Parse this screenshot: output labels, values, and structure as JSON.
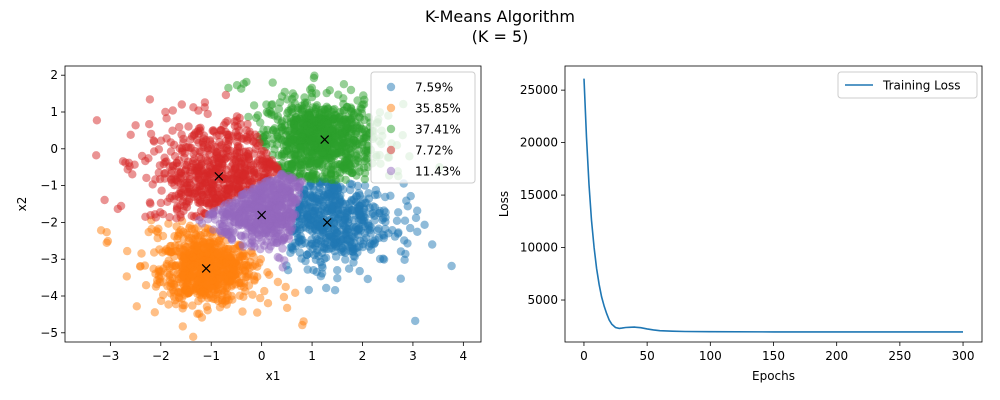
{
  "figure": {
    "title_line1": "K-Means Algorithm",
    "title_line2": "(K = 5)"
  },
  "chart_data": [
    {
      "type": "scatter",
      "xlabel": "x1",
      "ylabel": "x2",
      "xlim": [
        -3.9,
        4.35
      ],
      "ylim": [
        -5.25,
        2.25
      ],
      "xticks": [
        -3,
        -2,
        -1,
        0,
        1,
        2,
        3,
        4
      ],
      "yticks": [
        -5,
        -4,
        -3,
        -2,
        -1,
        0,
        1,
        2
      ],
      "grid": false,
      "legend_position": "top-right",
      "series": [
        {
          "name": "7.59%",
          "color": "#1f77b4",
          "centroid": [
            1.3,
            -2.0
          ]
        },
        {
          "name": "35.85%",
          "color": "#ff7f0e",
          "centroid": [
            -1.1,
            -3.25
          ]
        },
        {
          "name": "37.41%",
          "color": "#2ca02c",
          "centroid": [
            1.25,
            0.25
          ]
        },
        {
          "name": "7.72%",
          "color": "#d62728",
          "centroid": [
            -0.85,
            -0.75
          ]
        },
        {
          "name": "11.43%",
          "color": "#9467bd",
          "centroid": [
            0.0,
            -1.8
          ]
        }
      ],
      "centroid_marker": "x"
    },
    {
      "type": "line",
      "xlabel": "Epochs",
      "ylabel": "Loss",
      "xlim": [
        -15,
        315
      ],
      "ylim": [
        1000,
        27300
      ],
      "xticks": [
        0,
        50,
        100,
        150,
        200,
        250,
        300
      ],
      "yticks": [
        5000,
        10000,
        15000,
        20000,
        25000
      ],
      "grid": false,
      "legend_position": "top-right",
      "series": [
        {
          "name": "Training Loss",
          "color": "#1f77b4",
          "x": [
            0,
            2,
            4,
            6,
            8,
            10,
            12,
            14,
            16,
            18,
            20,
            22,
            25,
            28,
            30,
            33,
            36,
            40,
            45,
            50,
            55,
            60,
            70,
            80,
            100,
            150,
            200,
            250,
            300
          ],
          "y": [
            26100,
            20500,
            16000,
            12600,
            10000,
            8000,
            6500,
            5300,
            4400,
            3700,
            3100,
            2700,
            2380,
            2300,
            2320,
            2380,
            2400,
            2420,
            2360,
            2250,
            2150,
            2080,
            2030,
            2000,
            1980,
            1960,
            1960,
            1960,
            1960
          ]
        }
      ]
    }
  ]
}
